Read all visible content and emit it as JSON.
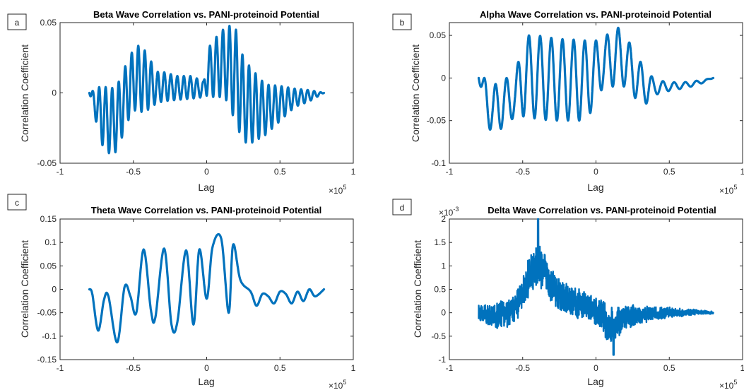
{
  "colors": {
    "series": "#0072BD",
    "axis": "#262626"
  },
  "chart_data": [
    {
      "id": "a",
      "panel_label": "a",
      "type": "line",
      "title": "Beta Wave Correlation vs. PANI-proteinoid Potential",
      "xlabel": "Lag",
      "ylabel": "Correlation Coefficient",
      "x_multiplier_label": {
        "base": "×10",
        "exp": "5"
      },
      "xlim": [
        -1,
        1
      ],
      "ylim": [
        -0.05,
        0.05
      ],
      "xticks": [
        -1,
        -0.5,
        0,
        0.5,
        1
      ],
      "xtick_labels": [
        "-1",
        "-0.5",
        "0",
        "0.5",
        "1"
      ],
      "yticks": [
        -0.05,
        0,
        0.05
      ],
      "ytick_labels": [
        "-0.05",
        "0",
        "0.05"
      ],
      "grid": false,
      "series": [
        {
          "style": "oscillation",
          "x": [
            -0.8,
            -0.72,
            -0.65,
            -0.6,
            -0.56,
            -0.5,
            -0.46,
            -0.4,
            -0.35,
            -0.3,
            -0.2,
            -0.1,
            -0.02,
            0.0,
            0.05,
            0.12,
            0.15,
            0.2,
            0.25,
            0.3,
            0.4,
            0.5,
            0.6,
            0.7,
            0.8
          ],
          "env_upper": [
            0.0,
            0.005,
            0.003,
            0.008,
            0.018,
            0.031,
            0.034,
            0.028,
            0.015,
            0.015,
            0.012,
            0.012,
            0.008,
            0.03,
            0.038,
            0.046,
            0.048,
            0.045,
            0.025,
            0.018,
            0.006,
            0.005,
            0.003,
            0.002,
            0.0
          ],
          "env_lower": [
            0.0,
            -0.036,
            -0.045,
            -0.04,
            -0.025,
            -0.012,
            -0.014,
            -0.012,
            -0.008,
            -0.006,
            -0.005,
            -0.004,
            -0.003,
            -0.002,
            -0.003,
            -0.003,
            -0.008,
            -0.022,
            -0.035,
            -0.036,
            -0.03,
            -0.02,
            -0.01,
            -0.006,
            0.0
          ],
          "cycles": 36
        }
      ]
    },
    {
      "id": "b",
      "panel_label": "b",
      "type": "line",
      "title": "Alpha Wave Correlation vs. PANI-proteinoid Potential",
      "xlabel": "Lag",
      "ylabel": "Correlation Coefficient",
      "x_multiplier_label": {
        "base": "×10",
        "exp": "5"
      },
      "xlim": [
        -1,
        1
      ],
      "ylim": [
        -0.1,
        0.065
      ],
      "xticks": [
        -1,
        -0.5,
        0,
        0.5,
        1
      ],
      "xtick_labels": [
        "-1",
        "-0.5",
        "0",
        "0.5",
        "1"
      ],
      "yticks": [
        -0.1,
        -0.05,
        0,
        0.05
      ],
      "ytick_labels": [
        "-0.1",
        "-0.05",
        "0",
        "0.05"
      ],
      "grid": false,
      "series": [
        {
          "style": "oscillation",
          "x": [
            -0.8,
            -0.75,
            -0.7,
            -0.65,
            -0.55,
            -0.5,
            -0.4,
            -0.3,
            -0.2,
            -0.1,
            -0.05,
            0.05,
            0.13,
            0.2,
            0.3,
            0.35,
            0.4,
            0.5,
            0.6,
            0.7,
            0.8
          ],
          "env_upper": [
            0.0,
            0.0,
            -0.01,
            0.0,
            0.0,
            0.05,
            0.05,
            0.047,
            0.045,
            0.045,
            0.043,
            0.045,
            0.063,
            0.05,
            0.02,
            0.008,
            -0.002,
            -0.005,
            -0.005,
            -0.003,
            0.0
          ],
          "env_lower": [
            0.0,
            -0.052,
            -0.068,
            -0.06,
            -0.045,
            -0.045,
            -0.048,
            -0.05,
            -0.05,
            -0.05,
            -0.045,
            -0.01,
            -0.01,
            -0.01,
            -0.03,
            -0.03,
            -0.02,
            -0.015,
            -0.012,
            -0.008,
            0.0
          ],
          "cycles": 21
        }
      ]
    },
    {
      "id": "c",
      "panel_label": "c",
      "type": "line",
      "title": "Theta Wave Correlation vs. PANI-proteinoid Potential",
      "xlabel": "Lag",
      "ylabel": "Correlation Coefficient",
      "x_multiplier_label": {
        "base": "×10",
        "exp": "5"
      },
      "xlim": [
        -1,
        1
      ],
      "ylim": [
        -0.15,
        0.15
      ],
      "xticks": [
        -1,
        -0.5,
        0,
        0.5,
        1
      ],
      "xtick_labels": [
        "-1",
        "-0.5",
        "0",
        "0.5",
        "1"
      ],
      "yticks": [
        -0.15,
        -0.1,
        -0.05,
        0,
        0.05,
        0.1,
        0.15
      ],
      "ytick_labels": [
        "-0.15",
        "-0.1",
        "-0.05",
        "0",
        "0.05",
        "0.1",
        "0.15"
      ],
      "grid": false,
      "series": [
        {
          "style": "points",
          "x": [
            -0.8,
            -0.78,
            -0.74,
            -0.7,
            -0.67,
            -0.61,
            -0.56,
            -0.52,
            -0.48,
            -0.43,
            -0.38,
            -0.35,
            -0.29,
            -0.24,
            -0.2,
            -0.14,
            -0.09,
            -0.05,
            0.0,
            0.04,
            0.1,
            0.15,
            0.18,
            0.23,
            0.3,
            0.34,
            0.38,
            0.42,
            0.46,
            0.5,
            0.54,
            0.58,
            0.62,
            0.66,
            0.7,
            0.74,
            0.8
          ],
          "y": [
            0.0,
            -0.01,
            -0.088,
            -0.022,
            -0.015,
            -0.113,
            0.005,
            -0.015,
            -0.05,
            0.085,
            -0.045,
            -0.06,
            0.087,
            -0.075,
            -0.07,
            0.083,
            -0.075,
            0.085,
            -0.02,
            0.09,
            0.107,
            -0.05,
            0.095,
            0.02,
            -0.005,
            -0.035,
            -0.01,
            -0.015,
            -0.03,
            -0.005,
            -0.01,
            -0.03,
            -0.005,
            -0.025,
            0.0,
            -0.015,
            0.0
          ]
        }
      ]
    },
    {
      "id": "d",
      "panel_label": "d",
      "type": "line",
      "title": "Delta Wave Correlation vs. PANI-proteinoid Potential",
      "xlabel": "Lag",
      "ylabel": "Correlation Coefficient",
      "x_multiplier_label": {
        "base": "×10",
        "exp": "5"
      },
      "y_multiplier_label": {
        "base": "×10",
        "exp": "-3"
      },
      "xlim": [
        -1,
        1
      ],
      "ylim": [
        -1,
        2
      ],
      "xticks": [
        -1,
        -0.5,
        0,
        0.5,
        1
      ],
      "xtick_labels": [
        "-1",
        "-0.5",
        "0",
        "0.5",
        "1"
      ],
      "yticks": [
        -1,
        -0.5,
        0,
        0.5,
        1,
        1.5,
        2
      ],
      "ytick_labels": [
        "-1",
        "-0.5",
        "0",
        "0.5",
        "1",
        "1.5",
        "2"
      ],
      "grid": false,
      "series": [
        {
          "style": "noisy",
          "x": [
            -0.8,
            -0.7,
            -0.6,
            -0.55,
            -0.5,
            -0.45,
            -0.4,
            -0.35,
            -0.3,
            -0.25,
            -0.2,
            -0.1,
            0.0,
            0.05,
            0.1,
            0.15,
            0.2,
            0.3,
            0.4,
            0.5,
            0.6,
            0.7,
            0.8
          ],
          "center": [
            0.0,
            -0.1,
            0.0,
            0.15,
            0.4,
            0.8,
            1.05,
            0.9,
            0.6,
            0.4,
            0.3,
            0.15,
            0.05,
            -0.1,
            -0.3,
            -0.2,
            -0.1,
            -0.05,
            -0.02,
            0.0,
            0.0,
            0.02,
            0.0
          ],
          "amp": [
            0.2,
            0.3,
            0.3,
            0.35,
            0.4,
            0.45,
            0.5,
            0.45,
            0.4,
            0.35,
            0.35,
            0.35,
            0.3,
            0.35,
            0.45,
            0.35,
            0.3,
            0.2,
            0.15,
            0.12,
            0.08,
            0.05,
            0.03
          ],
          "peak": {
            "x": -0.395,
            "y": 2.0
          },
          "trough": {
            "x": 0.12,
            "y": -0.9
          }
        }
      ]
    }
  ]
}
